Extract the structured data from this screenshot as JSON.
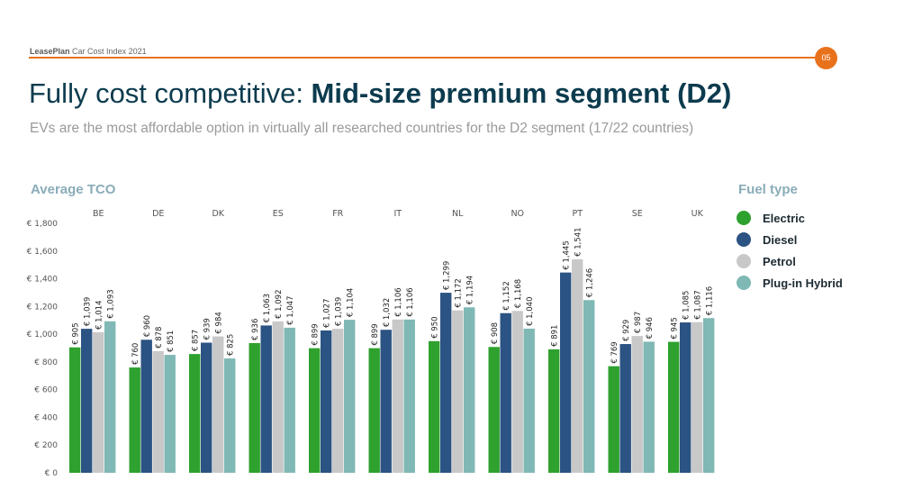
{
  "header": {
    "brand": "LeasePlan",
    "report": "Car Cost Index 2021",
    "page_number": "05",
    "accent_color": "#e8721c"
  },
  "title": {
    "regular": "Fully cost competitive: ",
    "bold": "Mid-size premium segment (D2)"
  },
  "subtitle": "EVs are the most affordable option in virtually all researched countries for the D2 segment (17/22 countries)",
  "chart_data": {
    "type": "bar",
    "title": "Average TCO",
    "categories": [
      "BE",
      "DE",
      "DK",
      "ES",
      "FR",
      "IT",
      "NL",
      "NO",
      "PT",
      "SE",
      "UK"
    ],
    "ylim": [
      0,
      1800
    ],
    "yticks": [
      "€ 0",
      "€ 200",
      "€ 400",
      "€ 600",
      "€ 800",
      "€ 1,000",
      "€ 1,200",
      "€ 1,400",
      "€ 1,600",
      "€ 1,800"
    ],
    "legend_title": "Fuel type",
    "legend_position": "right",
    "grid": false,
    "series": [
      {
        "name": "Electric",
        "color": "#2ea12e",
        "values": [
          905,
          760,
          857,
          936,
          899,
          899,
          950,
          908,
          891,
          769,
          945
        ],
        "labels": [
          "€ 905",
          "€ 760",
          "€ 857",
          "€ 936",
          "€ 899",
          "€ 899",
          "€ 950",
          "€ 908",
          "€ 891",
          "€ 769",
          "€ 945"
        ]
      },
      {
        "name": "Diesel",
        "color": "#2b5383",
        "values": [
          1039,
          960,
          939,
          1063,
          1027,
          1032,
          1299,
          1152,
          1445,
          929,
          1085
        ],
        "labels": [
          "€ 1,039",
          "€ 960",
          "€ 939",
          "€ 1,063",
          "€ 1,027",
          "€ 1,032",
          "€ 1,299",
          "€ 1,152",
          "€ 1,445",
          "€ 929",
          "€ 1,085"
        ]
      },
      {
        "name": "Petrol",
        "color": "#c8c8c8",
        "values": [
          1014,
          878,
          984,
          1092,
          1039,
          1106,
          1172,
          1168,
          1541,
          987,
          1087
        ],
        "labels": [
          "€ 1,014",
          "€ 878",
          "€ 984",
          "€ 1,092",
          "€ 1,039",
          "€ 1,106",
          "€ 1,172",
          "€ 1,168",
          "€ 1,541",
          "€ 987",
          "€ 1,087"
        ]
      },
      {
        "name": "Plug-in Hybrid",
        "color": "#7fb8b4",
        "values": [
          1093,
          851,
          825,
          1047,
          1104,
          1106,
          1194,
          1040,
          1246,
          946,
          1116
        ],
        "labels": [
          "€ 1,093",
          "€ 851",
          "€ 825",
          "€ 1,047",
          "€ 1,104",
          "€ 1,106",
          "€ 1,194",
          "€ 1,040",
          "€ 1,246",
          "€ 946",
          "€ 1,116"
        ]
      }
    ]
  }
}
